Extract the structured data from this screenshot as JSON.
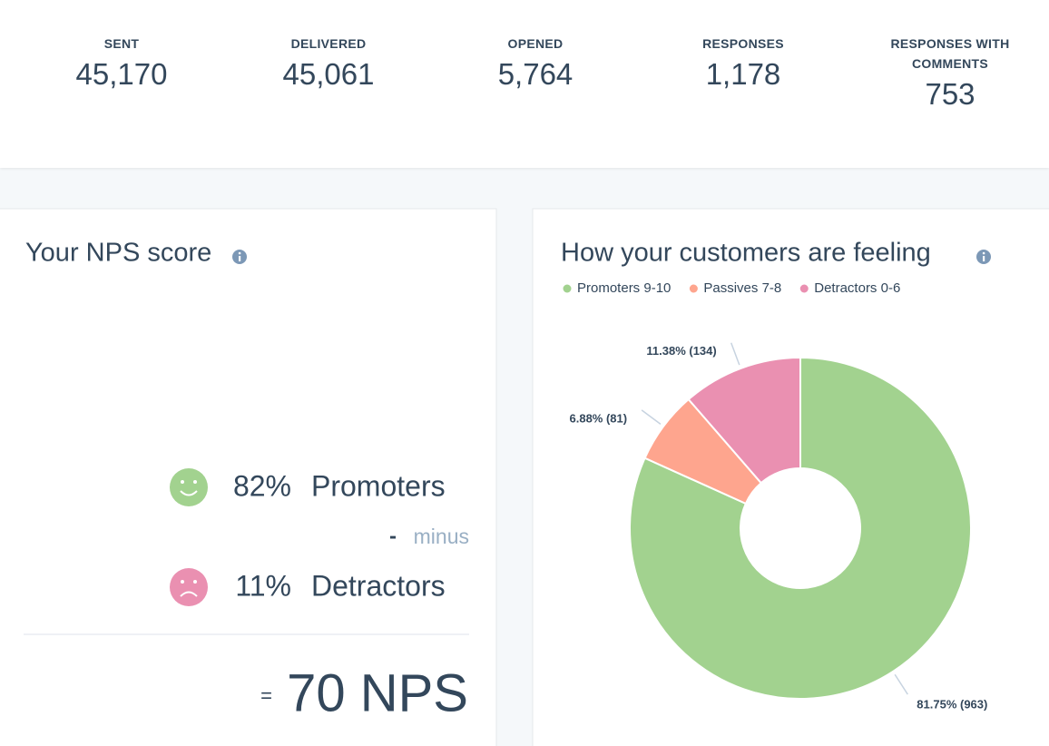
{
  "stats": [
    {
      "label": "SENT",
      "value": "45,170"
    },
    {
      "label": "DELIVERED",
      "value": "45,061"
    },
    {
      "label": "OPENED",
      "value": "5,764"
    },
    {
      "label": "RESPONSES",
      "value": "1,178"
    },
    {
      "label": "RESPONSES WITH COMMENTS",
      "value": "753"
    }
  ],
  "nps": {
    "title": "Your NPS score",
    "promoters_pct": "82%",
    "promoters_label": "Promoters",
    "minus_sign": "-",
    "minus_word": "minus",
    "detractors_pct": "11%",
    "detractors_label": "Detractors",
    "equals": "=",
    "score": "70 NPS"
  },
  "chart_data": {
    "type": "donut",
    "title": "How your customers are feeling",
    "categories": [
      "Promoters 9-10",
      "Passives 7-8",
      "Detractors 0-6"
    ],
    "values": [
      81.75,
      6.88,
      11.38
    ],
    "value_labels": [
      "81.75% (963)",
      "6.88% (81)",
      "11.38% (134)"
    ],
    "colors": [
      "#a2d28f",
      "#fea58e",
      "#ea90b1"
    ],
    "legend": "top"
  }
}
